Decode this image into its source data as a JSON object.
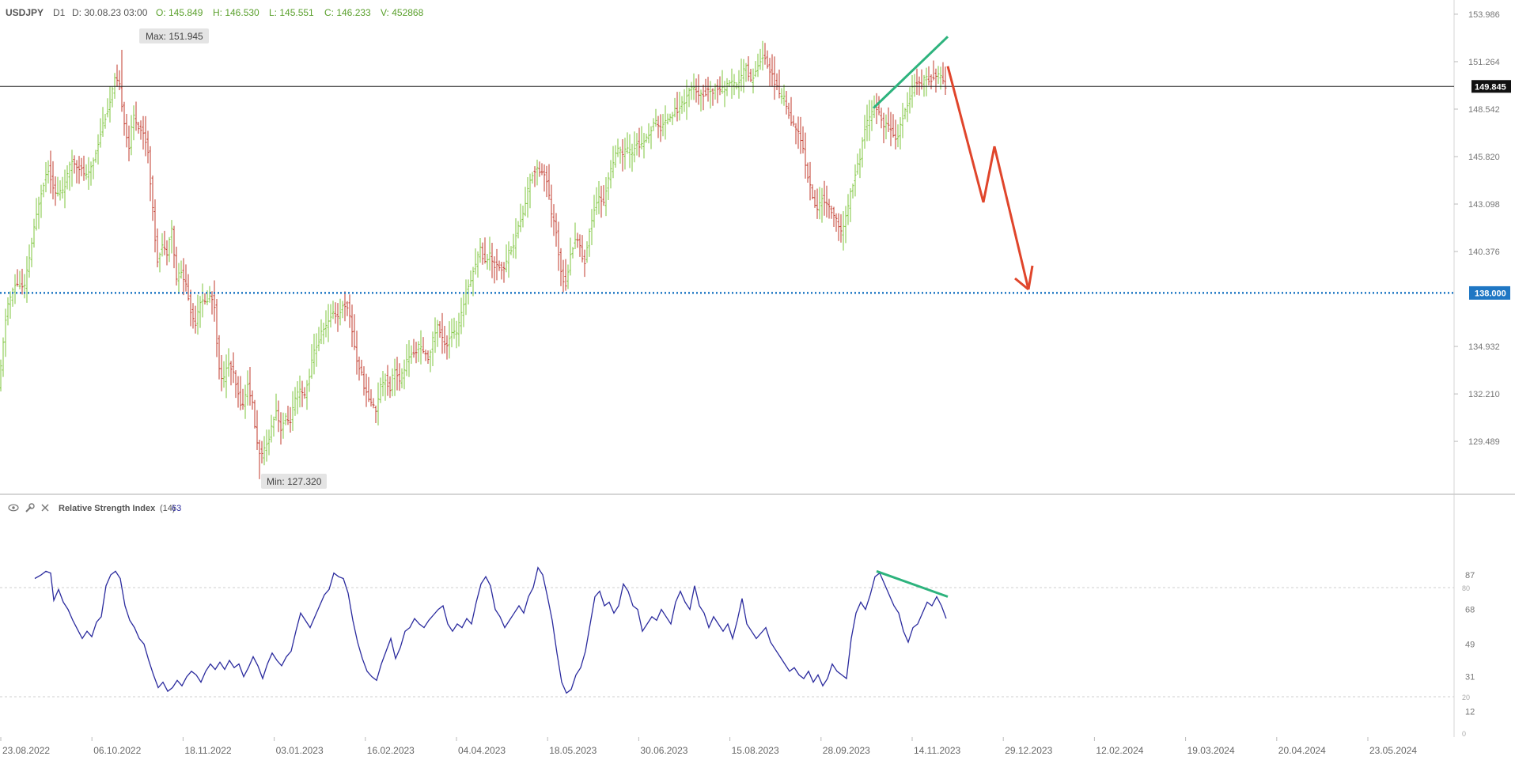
{
  "header": {
    "symbol": "USDJPY",
    "timeframe": "D1",
    "date": "D: 30.08.23 03:00",
    "open": "O: 145.849",
    "high": "H: 146.530",
    "low": "L: 145.551",
    "close": "C: 146.233",
    "volume": "V: 452868"
  },
  "indicator": {
    "name": "Relative Strength Index",
    "period": "(14)",
    "value": "63",
    "ticks": [
      "87",
      "80",
      "68",
      "49",
      "31",
      "20",
      "12",
      "0"
    ],
    "levels": [
      80,
      20
    ]
  },
  "chart_data": {
    "type": "candlestick",
    "x_labels": [
      "23.08.2022",
      "06.10.2022",
      "18.11.2022",
      "03.01.2023",
      "16.02.2023",
      "04.04.2023",
      "18.05.2023",
      "30.06.2023",
      "15.08.2023",
      "28.09.2023",
      "14.11.2023",
      "29.12.2023",
      "12.02.2024",
      "19.03.2024",
      "20.04.2024",
      "23.05.2024"
    ],
    "y_ticks": [
      "153.986",
      "151.264",
      "148.542",
      "145.820",
      "143.098",
      "140.376",
      "138.000",
      "134.932",
      "132.210",
      "129.489"
    ],
    "ylim": [
      126.5,
      154.8
    ],
    "current_price": "149.845",
    "horizontal_line": 149.845,
    "support_level": "138.000",
    "support_value": 138.0,
    "max_label": "Max: 151.945",
    "min_label": "Min: 127.320",
    "price_path": [
      [
        0,
        132.5
      ],
      [
        10,
        137.2
      ],
      [
        22,
        138.6
      ],
      [
        32,
        138.2
      ],
      [
        42,
        141.0
      ],
      [
        52,
        143.6
      ],
      [
        62,
        145.2
      ],
      [
        72,
        143.6
      ],
      [
        82,
        144.0
      ],
      [
        92,
        145.6
      ],
      [
        102,
        145.2
      ],
      [
        112,
        144.6
      ],
      [
        122,
        146.0
      ],
      [
        132,
        147.8
      ],
      [
        140,
        148.8
      ],
      [
        146,
        150.2
      ],
      [
        152,
        150.0
      ],
      [
        158,
        148.0
      ],
      [
        164,
        146.2
      ],
      [
        170,
        148.2
      ],
      [
        176,
        147.6
      ],
      [
        182,
        147.2
      ],
      [
        188,
        146.4
      ],
      [
        194,
        143.0
      ],
      [
        200,
        139.8
      ],
      [
        206,
        140.8
      ],
      [
        212,
        140.2
      ],
      [
        218,
        142.0
      ],
      [
        224,
        138.8
      ],
      [
        230,
        139.2
      ],
      [
        236,
        138.6
      ],
      [
        242,
        137.0
      ],
      [
        248,
        136.2
      ],
      [
        254,
        137.6
      ],
      [
        260,
        137.4
      ],
      [
        266,
        137.8
      ],
      [
        272,
        137.6
      ],
      [
        278,
        133.6
      ],
      [
        284,
        133.0
      ],
      [
        290,
        134.0
      ],
      [
        296,
        133.4
      ],
      [
        302,
        132.2
      ],
      [
        308,
        131.4
      ],
      [
        314,
        132.8
      ],
      [
        320,
        131.8
      ],
      [
        326,
        129.4
      ],
      [
        332,
        128.6
      ],
      [
        338,
        129.2
      ],
      [
        344,
        130.2
      ],
      [
        350,
        131.4
      ],
      [
        356,
        130.2
      ],
      [
        362,
        130.8
      ],
      [
        368,
        130.6
      ],
      [
        374,
        131.8
      ],
      [
        380,
        132.4
      ],
      [
        386,
        132.0
      ],
      [
        392,
        133.2
      ],
      [
        398,
        134.6
      ],
      [
        404,
        135.2
      ],
      [
        410,
        136.0
      ],
      [
        416,
        136.2
      ],
      [
        422,
        137.0
      ],
      [
        428,
        136.6
      ],
      [
        434,
        137.2
      ],
      [
        440,
        137.4
      ],
      [
        446,
        136.0
      ],
      [
        452,
        134.2
      ],
      [
        458,
        133.4
      ],
      [
        464,
        132.2
      ],
      [
        470,
        131.8
      ],
      [
        476,
        131.2
      ],
      [
        482,
        132.6
      ],
      [
        488,
        133.2
      ],
      [
        494,
        132.4
      ],
      [
        500,
        133.8
      ],
      [
        506,
        132.8
      ],
      [
        512,
        133.6
      ],
      [
        518,
        134.4
      ],
      [
        524,
        134.4
      ],
      [
        530,
        135.0
      ],
      [
        536,
        134.6
      ],
      [
        542,
        134.2
      ],
      [
        548,
        135.2
      ],
      [
        554,
        136.2
      ],
      [
        560,
        135.4
      ],
      [
        566,
        135.0
      ],
      [
        572,
        135.8
      ],
      [
        578,
        135.6
      ],
      [
        584,
        136.6
      ],
      [
        590,
        138.0
      ],
      [
        596,
        138.8
      ],
      [
        602,
        139.6
      ],
      [
        608,
        140.6
      ],
      [
        614,
        139.8
      ],
      [
        620,
        140.2
      ],
      [
        626,
        139.6
      ],
      [
        632,
        139.6
      ],
      [
        638,
        139.2
      ],
      [
        644,
        140.4
      ],
      [
        650,
        140.6
      ],
      [
        656,
        141.8
      ],
      [
        662,
        142.4
      ],
      [
        668,
        143.8
      ],
      [
        674,
        144.8
      ],
      [
        680,
        145.2
      ],
      [
        686,
        145.0
      ],
      [
        692,
        144.6
      ],
      [
        698,
        142.6
      ],
      [
        704,
        141.6
      ],
      [
        710,
        139.4
      ],
      [
        716,
        138.4
      ],
      [
        722,
        140.0
      ],
      [
        728,
        141.2
      ],
      [
        734,
        140.8
      ],
      [
        740,
        139.6
      ],
      [
        746,
        141.4
      ],
      [
        752,
        142.8
      ],
      [
        758,
        143.6
      ],
      [
        764,
        143.0
      ],
      [
        770,
        144.6
      ],
      [
        776,
        145.4
      ],
      [
        782,
        146.2
      ],
      [
        788,
        146.0
      ],
      [
        794,
        146.2
      ],
      [
        800,
        146.0
      ],
      [
        806,
        146.6
      ],
      [
        812,
        146.4
      ],
      [
        818,
        146.8
      ],
      [
        824,
        147.4
      ],
      [
        830,
        147.8
      ],
      [
        836,
        147.4
      ],
      [
        842,
        147.8
      ],
      [
        848,
        148.2
      ],
      [
        854,
        148.4
      ],
      [
        860,
        148.6
      ],
      [
        866,
        149.0
      ],
      [
        872,
        149.6
      ],
      [
        878,
        149.8
      ],
      [
        884,
        149.2
      ],
      [
        890,
        149.4
      ],
      [
        896,
        149.6
      ],
      [
        902,
        149.6
      ],
      [
        908,
        149.8
      ],
      [
        914,
        149.6
      ],
      [
        920,
        149.9
      ],
      [
        926,
        150.0
      ],
      [
        932,
        149.8
      ],
      [
        938,
        150.4
      ],
      [
        944,
        151.0
      ],
      [
        950,
        150.2
      ],
      [
        956,
        150.6
      ],
      [
        962,
        151.4
      ],
      [
        968,
        151.6
      ],
      [
        974,
        150.8
      ],
      [
        980,
        150.2
      ],
      [
        986,
        149.4
      ],
      [
        992,
        149.2
      ],
      [
        998,
        148.4
      ],
      [
        1004,
        147.6
      ],
      [
        1010,
        147.2
      ],
      [
        1016,
        146.4
      ],
      [
        1022,
        144.8
      ],
      [
        1028,
        143.6
      ],
      [
        1034,
        142.6
      ],
      [
        1040,
        143.6
      ],
      [
        1046,
        143.0
      ],
      [
        1052,
        142.8
      ],
      [
        1058,
        142.2
      ],
      [
        1064,
        141.4
      ],
      [
        1070,
        142.2
      ],
      [
        1076,
        143.6
      ],
      [
        1082,
        144.8
      ],
      [
        1088,
        145.6
      ],
      [
        1094,
        147.4
      ],
      [
        1100,
        148.0
      ],
      [
        1106,
        148.6
      ],
      [
        1112,
        148.4
      ],
      [
        1118,
        147.6
      ],
      [
        1124,
        147.6
      ],
      [
        1130,
        147.2
      ],
      [
        1136,
        146.8
      ],
      [
        1142,
        148.0
      ],
      [
        1148,
        148.8
      ],
      [
        1154,
        149.6
      ],
      [
        1160,
        150.2
      ],
      [
        1166,
        150.0
      ],
      [
        1172,
        150.4
      ],
      [
        1178,
        150.2
      ],
      [
        1184,
        150.6
      ],
      [
        1190,
        150.4
      ],
      [
        1196,
        149.9
      ]
    ],
    "rsi_path": [
      [
        44,
        85
      ],
      [
        52,
        87
      ],
      [
        58,
        89
      ],
      [
        64,
        88
      ],
      [
        68,
        73
      ],
      [
        74,
        79
      ],
      [
        80,
        72
      ],
      [
        86,
        68
      ],
      [
        92,
        62
      ],
      [
        98,
        57
      ],
      [
        104,
        52
      ],
      [
        110,
        56
      ],
      [
        116,
        53
      ],
      [
        122,
        61
      ],
      [
        128,
        64
      ],
      [
        134,
        81
      ],
      [
        140,
        87
      ],
      [
        146,
        89
      ],
      [
        152,
        85
      ],
      [
        158,
        70
      ],
      [
        164,
        62
      ],
      [
        170,
        58
      ],
      [
        176,
        52
      ],
      [
        182,
        49
      ],
      [
        188,
        40
      ],
      [
        194,
        32
      ],
      [
        200,
        25
      ],
      [
        206,
        28
      ],
      [
        212,
        23
      ],
      [
        218,
        25
      ],
      [
        224,
        29
      ],
      [
        230,
        26
      ],
      [
        236,
        31
      ],
      [
        242,
        34
      ],
      [
        248,
        32
      ],
      [
        254,
        28
      ],
      [
        260,
        34
      ],
      [
        266,
        38
      ],
      [
        272,
        35
      ],
      [
        278,
        39
      ],
      [
        284,
        35
      ],
      [
        290,
        40
      ],
      [
        296,
        36
      ],
      [
        302,
        38
      ],
      [
        308,
        31
      ],
      [
        314,
        36
      ],
      [
        320,
        42
      ],
      [
        326,
        37
      ],
      [
        332,
        30
      ],
      [
        338,
        38
      ],
      [
        344,
        44
      ],
      [
        350,
        40
      ],
      [
        356,
        37
      ],
      [
        362,
        42
      ],
      [
        368,
        45
      ],
      [
        374,
        56
      ],
      [
        380,
        66
      ],
      [
        386,
        62
      ],
      [
        392,
        58
      ],
      [
        398,
        64
      ],
      [
        404,
        70
      ],
      [
        410,
        76
      ],
      [
        416,
        79
      ],
      [
        422,
        88
      ],
      [
        428,
        86
      ],
      [
        434,
        85
      ],
      [
        440,
        77
      ],
      [
        446,
        62
      ],
      [
        452,
        50
      ],
      [
        458,
        41
      ],
      [
        464,
        34
      ],
      [
        470,
        31
      ],
      [
        476,
        29
      ],
      [
        482,
        38
      ],
      [
        488,
        45
      ],
      [
        494,
        52
      ],
      [
        500,
        41
      ],
      [
        506,
        47
      ],
      [
        512,
        56
      ],
      [
        518,
        58
      ],
      [
        524,
        63
      ],
      [
        530,
        60
      ],
      [
        536,
        58
      ],
      [
        542,
        62
      ],
      [
        548,
        65
      ],
      [
        554,
        68
      ],
      [
        560,
        70
      ],
      [
        566,
        60
      ],
      [
        572,
        56
      ],
      [
        578,
        60
      ],
      [
        584,
        58
      ],
      [
        590,
        63
      ],
      [
        596,
        60
      ],
      [
        602,
        72
      ],
      [
        608,
        82
      ],
      [
        614,
        86
      ],
      [
        620,
        81
      ],
      [
        626,
        68
      ],
      [
        632,
        64
      ],
      [
        638,
        58
      ],
      [
        644,
        62
      ],
      [
        650,
        66
      ],
      [
        656,
        70
      ],
      [
        662,
        66
      ],
      [
        668,
        75
      ],
      [
        674,
        80
      ],
      [
        680,
        91
      ],
      [
        686,
        87
      ],
      [
        692,
        75
      ],
      [
        698,
        62
      ],
      [
        704,
        44
      ],
      [
        710,
        28
      ],
      [
        716,
        22
      ],
      [
        722,
        24
      ],
      [
        728,
        32
      ],
      [
        734,
        36
      ],
      [
        740,
        45
      ],
      [
        746,
        60
      ],
      [
        752,
        75
      ],
      [
        758,
        78
      ],
      [
        764,
        70
      ],
      [
        770,
        72
      ],
      [
        776,
        66
      ],
      [
        782,
        70
      ],
      [
        788,
        82
      ],
      [
        794,
        78
      ],
      [
        800,
        70
      ],
      [
        806,
        68
      ],
      [
        812,
        56
      ],
      [
        818,
        60
      ],
      [
        824,
        64
      ],
      [
        830,
        62
      ],
      [
        836,
        68
      ],
      [
        842,
        64
      ],
      [
        848,
        60
      ],
      [
        854,
        72
      ],
      [
        860,
        78
      ],
      [
        866,
        72
      ],
      [
        872,
        68
      ],
      [
        878,
        81
      ],
      [
        884,
        70
      ],
      [
        890,
        66
      ],
      [
        896,
        58
      ],
      [
        902,
        64
      ],
      [
        908,
        60
      ],
      [
        914,
        56
      ],
      [
        920,
        60
      ],
      [
        926,
        52
      ],
      [
        932,
        62
      ],
      [
        938,
        74
      ],
      [
        944,
        60
      ],
      [
        950,
        56
      ],
      [
        956,
        52
      ],
      [
        962,
        55
      ],
      [
        968,
        58
      ],
      [
        974,
        50
      ],
      [
        980,
        46
      ],
      [
        986,
        42
      ],
      [
        992,
        38
      ],
      [
        998,
        34
      ],
      [
        1004,
        36
      ],
      [
        1010,
        32
      ],
      [
        1016,
        30
      ],
      [
        1022,
        34
      ],
      [
        1028,
        28
      ],
      [
        1034,
        32
      ],
      [
        1040,
        26
      ],
      [
        1046,
        30
      ],
      [
        1052,
        38
      ],
      [
        1058,
        34
      ],
      [
        1064,
        32
      ],
      [
        1070,
        30
      ],
      [
        1076,
        52
      ],
      [
        1082,
        66
      ],
      [
        1088,
        72
      ],
      [
        1094,
        68
      ],
      [
        1100,
        76
      ],
      [
        1106,
        86
      ],
      [
        1112,
        88
      ],
      [
        1118,
        82
      ],
      [
        1124,
        76
      ],
      [
        1130,
        70
      ],
      [
        1136,
        66
      ],
      [
        1142,
        56
      ],
      [
        1148,
        50
      ],
      [
        1154,
        58
      ],
      [
        1160,
        60
      ],
      [
        1166,
        66
      ],
      [
        1172,
        72
      ],
      [
        1178,
        70
      ],
      [
        1184,
        75
      ],
      [
        1190,
        70
      ],
      [
        1196,
        63
      ]
    ],
    "annotations": [
      {
        "type": "trendline",
        "color": "#2db37d",
        "panel": "price",
        "from": [
          1104,
          148.6
        ],
        "to": [
          1198,
          152.7
        ]
      },
      {
        "type": "trendline",
        "color": "#2db37d",
        "panel": "rsi",
        "from": [
          1108,
          89
        ],
        "to": [
          1198,
          75
        ]
      },
      {
        "type": "projection",
        "color": "#e0452b",
        "points": [
          [
            1198,
            151.0
          ],
          [
            1243,
            143.2
          ],
          [
            1257,
            146.4
          ],
          [
            1300,
            138.2
          ]
        ]
      }
    ],
    "colors": {
      "up": "#7cc43b",
      "down": "#c0392b",
      "rsi": "#2b2b9e",
      "support": "#1f77c4"
    }
  }
}
